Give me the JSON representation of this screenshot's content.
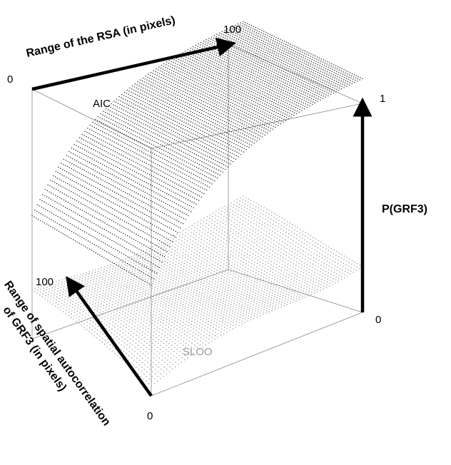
{
  "chart_data": {
    "type": "surface",
    "title": "",
    "axes": {
      "rsa_range": {
        "label": "Range of the RSA (in pixels)",
        "min": "0",
        "max": "100"
      },
      "autocorrelation_range": {
        "label_line1": "Range of spatial autocorrelation",
        "label_line2": "of GRF3 (in pixels)",
        "min": "0",
        "max": "100"
      },
      "probability": {
        "label": "P(GRF3)",
        "min": "0",
        "max": "1"
      }
    },
    "series": [
      {
        "name": "AIC",
        "rendering": "dark dotted surface",
        "description_of_shape": "rises from about 0.45 at zero RSA range to about 0.95 at maximal RSA range",
        "corner_values": {
          "rsa0_auto0": 0.45,
          "rsa0_auto100": 0.5,
          "rsa100_auto0": 0.95,
          "rsa100_auto100": 0.95
        }
      },
      {
        "name": "SLOO",
        "rendering": "light gray dotted surface",
        "corner_values": {
          "rsa0_auto0": 0.04,
          "rsa0_auto100": 0.18,
          "rsa100_auto0": 0.22,
          "rsa100_auto100": 0.22
        }
      }
    ],
    "colors": {
      "aic": "#1a1a1a",
      "sloo": "#9a9a9a",
      "box": "#888888",
      "axis": "#000000"
    }
  }
}
